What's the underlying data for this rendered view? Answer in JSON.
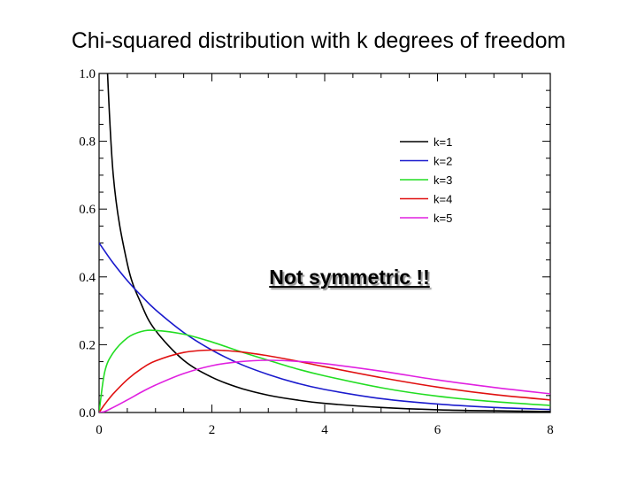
{
  "title": "Chi-squared distribution with k degrees of freedom",
  "annotation": "Not symmetric !!",
  "chart_data": {
    "type": "line",
    "title": "Chi-squared distribution with k degrees of freedom",
    "xlabel": "",
    "ylabel": "",
    "xlim": [
      0,
      8
    ],
    "ylim": [
      0,
      1.0
    ],
    "xticks": [
      0,
      2,
      4,
      6,
      8
    ],
    "xtick_labels": [
      "0",
      "2",
      "4",
      "6",
      "8"
    ],
    "yticks": [
      0.0,
      0.2,
      0.4,
      0.6,
      0.8,
      1.0
    ],
    "ytick_labels": [
      "0.0",
      "0.2",
      "0.4",
      "0.6",
      "0.8",
      "1.0"
    ],
    "grid": false,
    "legend_position": "top-right",
    "x": [
      0,
      0.1,
      0.25,
      0.5,
      0.75,
      1,
      1.5,
      2,
      2.5,
      3,
      3.5,
      4,
      5,
      6,
      7,
      8
    ],
    "series": [
      {
        "name": "k=1",
        "color": "#000000",
        "values": [
          null,
          1.2,
          0.704,
          0.439,
          0.319,
          0.242,
          0.154,
          0.104,
          0.072,
          0.051,
          0.037,
          0.027,
          0.015,
          0.008,
          0.005,
          0.003
        ]
      },
      {
        "name": "k=2",
        "color": "#1a1acd",
        "values": [
          0.5,
          0.476,
          0.441,
          0.389,
          0.344,
          0.303,
          0.236,
          0.184,
          0.143,
          0.112,
          0.087,
          0.068,
          0.041,
          0.025,
          0.015,
          0.009
        ]
      },
      {
        "name": "k=3",
        "color": "#22dd22",
        "values": [
          0.0,
          0.12,
          0.176,
          0.22,
          0.239,
          0.242,
          0.231,
          0.208,
          0.18,
          0.154,
          0.129,
          0.108,
          0.073,
          0.048,
          0.032,
          0.021
        ]
      },
      {
        "name": "k=4",
        "color": "#e01010",
        "values": [
          0.0,
          0.024,
          0.055,
          0.097,
          0.129,
          0.152,
          0.177,
          0.184,
          0.179,
          0.167,
          0.152,
          0.135,
          0.103,
          0.075,
          0.053,
          0.037
        ]
      },
      {
        "name": "k=5",
        "color": "#e020e0",
        "values": [
          0.0,
          0.003,
          0.015,
          0.037,
          0.06,
          0.081,
          0.115,
          0.138,
          0.15,
          0.154,
          0.151,
          0.144,
          0.122,
          0.096,
          0.074,
          0.055
        ]
      }
    ]
  }
}
